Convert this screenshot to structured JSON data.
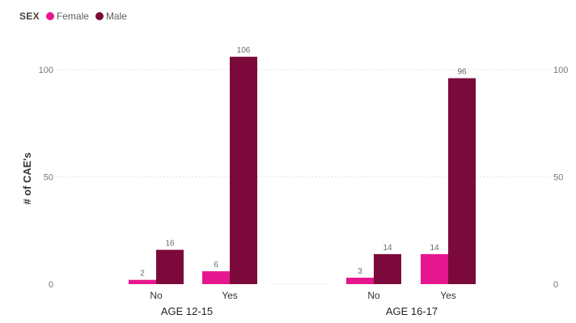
{
  "chart_data": {
    "type": "bar",
    "legend_title": "SEX",
    "legend_position": "top-left",
    "series": [
      {
        "name": "Female",
        "color": "#e6178e",
        "values": [
          2,
          6,
          3,
          14
        ]
      },
      {
        "name": "Male",
        "color": "#7b0a3b",
        "values": [
          16,
          106,
          14,
          96
        ]
      }
    ],
    "groups": [
      {
        "label": "AGE 12-15",
        "categories": [
          "No",
          "Yes"
        ]
      },
      {
        "label": "AGE 16-17",
        "categories": [
          "No",
          "Yes"
        ]
      }
    ],
    "ylabel": "# of CAE's",
    "yticks": [
      0,
      50,
      100
    ],
    "ylim": [
      0,
      110
    ],
    "grid": true,
    "data_labels": true
  }
}
